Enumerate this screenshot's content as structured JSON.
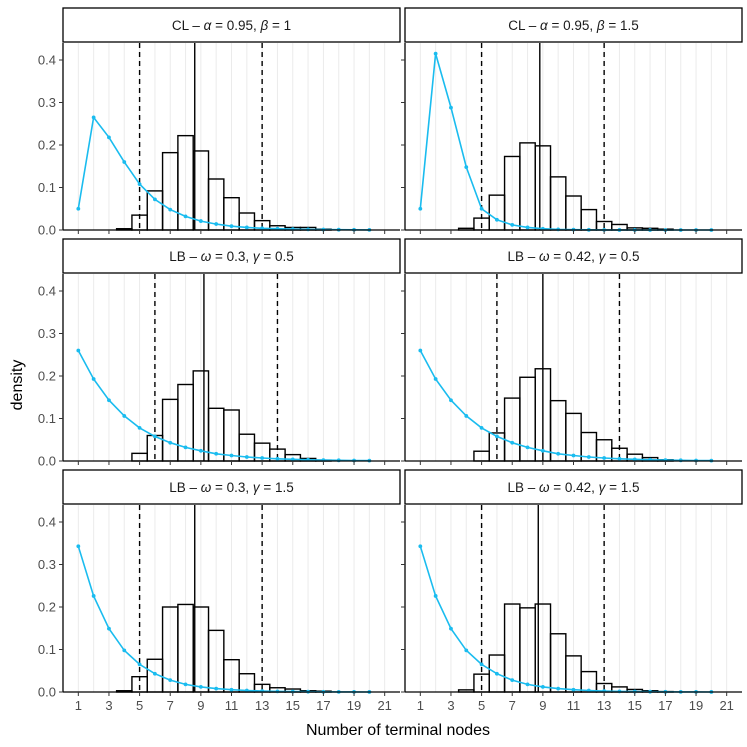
{
  "chart_data": {
    "type": "faceted-histogram-with-line",
    "xlabel": "Number of terminal nodes",
    "ylabel": "density",
    "x_ticks": [
      1,
      3,
      5,
      7,
      9,
      11,
      13,
      15,
      17,
      19,
      21
    ],
    "x_range": [
      0,
      22
    ],
    "y_ticks": [
      0.0,
      0.1,
      0.2,
      0.3,
      0.4
    ],
    "y_tick_labels": [
      "0.0",
      "0.1",
      "0.2",
      "0.3",
      "0.4"
    ],
    "y_range": [
      0,
      0.44
    ],
    "grid": "vertical lines at integer x",
    "colors": {
      "prior_line": "#1ABCEF",
      "bars": "#000000",
      "strip_fill": "#ffffff",
      "grid": "#ebebeb"
    },
    "facets": [
      {
        "strip": {
          "prefix": "CL – ",
          "p1": "α",
          "v1": "0.95",
          "p2": "β",
          "v2": "1"
        },
        "hist": {
          "x": [
            4,
            5,
            6,
            7,
            8,
            9,
            10,
            11,
            12,
            13,
            14,
            15,
            16,
            17
          ],
          "y": [
            0.003,
            0.035,
            0.092,
            0.182,
            0.222,
            0.186,
            0.12,
            0.076,
            0.04,
            0.022,
            0.01,
            0.006,
            0.006,
            0.002
          ]
        },
        "prior_line": {
          "x": [
            1,
            2,
            3,
            4,
            5,
            6,
            7,
            8,
            9,
            10,
            11,
            12,
            13,
            14,
            15,
            16,
            17,
            18,
            19,
            20
          ],
          "y": [
            0.05,
            0.265,
            0.218,
            0.16,
            0.108,
            0.072,
            0.048,
            0.032,
            0.021,
            0.014,
            0.009,
            0.006,
            0.004,
            0.003,
            0.002,
            0.0015,
            0.001,
            0.0007,
            0.0005,
            0.0003
          ]
        },
        "mean": 8.6,
        "lower": 5,
        "upper": 13
      },
      {
        "strip": {
          "prefix": "CL – ",
          "p1": "α",
          "v1": "0.95",
          "p2": "β",
          "v2": "1.5"
        },
        "hist": {
          "x": [
            4,
            5,
            6,
            7,
            8,
            9,
            10,
            11,
            12,
            13,
            14,
            15,
            16,
            17
          ],
          "y": [
            0.004,
            0.028,
            0.082,
            0.173,
            0.205,
            0.198,
            0.125,
            0.08,
            0.048,
            0.02,
            0.013,
            0.005,
            0.004,
            0.002
          ]
        },
        "prior_line": {
          "x": [
            1,
            2,
            3,
            4,
            5,
            6,
            7,
            8,
            9,
            10,
            11,
            12,
            13,
            14,
            15,
            16,
            17,
            18,
            19,
            20
          ],
          "y": [
            0.05,
            0.415,
            0.288,
            0.148,
            0.05,
            0.024,
            0.012,
            0.006,
            0.003,
            0.0015,
            0.0008,
            0.0004,
            0.0002,
            0.0001,
            0.0001,
            0,
            0,
            0,
            0,
            0
          ]
        },
        "mean": 8.8,
        "lower": 5,
        "upper": 13
      },
      {
        "strip": {
          "prefix": "LB – ",
          "p1": "ω",
          "v1": "0.3",
          "p2": "γ",
          "v2": "0.5"
        },
        "hist": {
          "x": [
            5,
            6,
            7,
            8,
            9,
            10,
            11,
            12,
            13,
            14,
            15,
            16,
            17
          ],
          "y": [
            0.018,
            0.06,
            0.145,
            0.18,
            0.212,
            0.124,
            0.12,
            0.063,
            0.042,
            0.028,
            0.015,
            0.006,
            0.002
          ]
        },
        "prior_line": {
          "x": [
            1,
            2,
            3,
            4,
            5,
            6,
            7,
            8,
            9,
            10,
            11,
            12,
            13,
            14,
            15,
            16,
            17,
            18,
            19,
            20
          ],
          "y": [
            0.26,
            0.193,
            0.143,
            0.106,
            0.078,
            0.058,
            0.043,
            0.032,
            0.024,
            0.017,
            0.013,
            0.0095,
            0.007,
            0.0052,
            0.0039,
            0.0029,
            0.0021,
            0.0016,
            0.0012,
            0.0009
          ]
        },
        "mean": 9.2,
        "lower": 6,
        "upper": 14
      },
      {
        "strip": {
          "prefix": "LB – ",
          "p1": "ω",
          "v1": "0.42",
          "p2": "γ",
          "v2": "0.5"
        },
        "hist": {
          "x": [
            5,
            6,
            7,
            8,
            9,
            10,
            11,
            12,
            13,
            14,
            15,
            16,
            17
          ],
          "y": [
            0.023,
            0.066,
            0.148,
            0.197,
            0.217,
            0.142,
            0.112,
            0.067,
            0.05,
            0.03,
            0.016,
            0.008,
            0.003
          ]
        },
        "prior_line": {
          "x": [
            1,
            2,
            3,
            4,
            5,
            6,
            7,
            8,
            9,
            10,
            11,
            12,
            13,
            14,
            15,
            16,
            17,
            18,
            19,
            20
          ],
          "y": [
            0.26,
            0.193,
            0.143,
            0.106,
            0.078,
            0.058,
            0.043,
            0.032,
            0.024,
            0.017,
            0.013,
            0.0095,
            0.007,
            0.0052,
            0.0039,
            0.0029,
            0.0021,
            0.0016,
            0.0012,
            0.0009
          ]
        },
        "mean": 9.0,
        "lower": 6,
        "upper": 14
      },
      {
        "strip": {
          "prefix": "LB – ",
          "p1": "ω",
          "v1": "0.3",
          "p2": "γ",
          "v2": "1.5"
        },
        "hist": {
          "x": [
            4,
            5,
            6,
            7,
            8,
            9,
            10,
            11,
            12,
            13,
            14,
            15,
            16,
            17
          ],
          "y": [
            0.003,
            0.036,
            0.077,
            0.2,
            0.206,
            0.2,
            0.145,
            0.076,
            0.043,
            0.018,
            0.01,
            0.007,
            0.003,
            0.002
          ]
        },
        "prior_line": {
          "x": [
            1,
            2,
            3,
            4,
            5,
            6,
            7,
            8,
            9,
            10,
            11,
            12,
            13,
            14,
            15,
            16,
            17,
            18,
            19,
            20
          ],
          "y": [
            0.343,
            0.226,
            0.149,
            0.098,
            0.065,
            0.043,
            0.028,
            0.018,
            0.012,
            0.008,
            0.0053,
            0.0035,
            0.0023,
            0.0015,
            0.001,
            0.0007,
            0.0004,
            0.0003,
            0.0002,
            0.0001
          ]
        },
        "mean": 8.6,
        "lower": 5,
        "upper": 13
      },
      {
        "strip": {
          "prefix": "LB – ",
          "p1": "ω",
          "v1": "0.42",
          "p2": "γ",
          "v2": "1.5"
        },
        "hist": {
          "x": [
            4,
            5,
            6,
            7,
            8,
            9,
            10,
            11,
            12,
            13,
            14,
            15,
            16,
            17
          ],
          "y": [
            0.005,
            0.042,
            0.087,
            0.207,
            0.198,
            0.207,
            0.137,
            0.085,
            0.048,
            0.02,
            0.012,
            0.006,
            0.003,
            0.001
          ]
        },
        "prior_line": {
          "x": [
            1,
            2,
            3,
            4,
            5,
            6,
            7,
            8,
            9,
            10,
            11,
            12,
            13,
            14,
            15,
            16,
            17,
            18,
            19,
            20
          ],
          "y": [
            0.343,
            0.226,
            0.149,
            0.098,
            0.065,
            0.043,
            0.028,
            0.018,
            0.012,
            0.008,
            0.0053,
            0.0035,
            0.0023,
            0.0015,
            0.001,
            0.0007,
            0.0004,
            0.0003,
            0.0002,
            0.0001
          ]
        },
        "mean": 8.7,
        "lower": 5,
        "upper": 13
      }
    ]
  }
}
